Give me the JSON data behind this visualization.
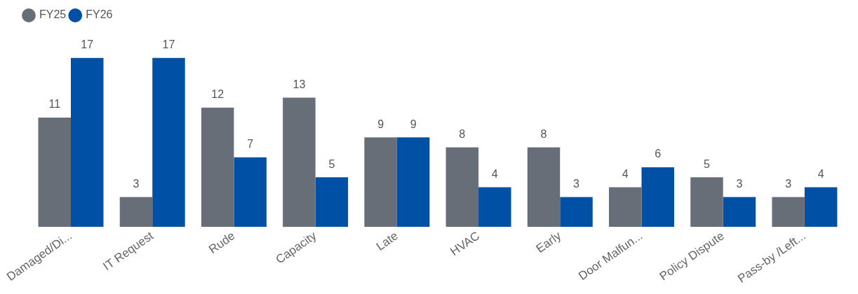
{
  "chart_data": {
    "type": "bar",
    "categories": [
      "Damaged/Di...",
      "IT Request",
      "Rude",
      "Capacity",
      "Late",
      "HVAC",
      "Early",
      "Door Malfun...",
      "Policy Dispute",
      "Pass-by /Left..."
    ],
    "series": [
      {
        "name": "FY25",
        "color": "#686e77",
        "values": [
          11,
          3,
          12,
          13,
          9,
          8,
          8,
          4,
          5,
          3
        ]
      },
      {
        "name": "FY26",
        "color": "#0050a5",
        "values": [
          17,
          17,
          7,
          5,
          9,
          4,
          3,
          6,
          3,
          4
        ]
      }
    ],
    "data_labels": true,
    "legend": "top left",
    "grid": false
  }
}
